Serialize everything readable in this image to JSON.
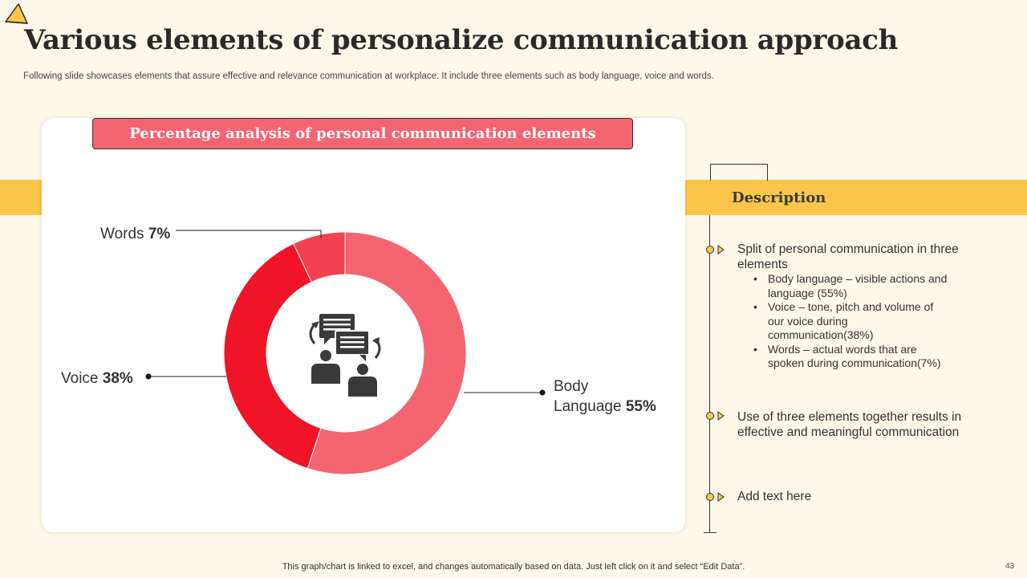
{
  "slide": {
    "title": "Various elements of personalize communication approach",
    "subtitle": "Following slide showcases elements that assure effective and relevance communication at workplace. It include three elements such as body language, voice and words.",
    "footer": "This graph/chart is linked to excel,  and changes automatically based on data. Just left click on it and select “Edit Data”.",
    "page_number": "43"
  },
  "colors": {
    "background": "#fdf8ea",
    "accent_yellow": "#fbc648",
    "title_box": "#f56471",
    "body_language": "#f56471",
    "voice": "#f01427",
    "words": "#f3424f"
  },
  "chart_data": {
    "type": "pie",
    "variant": "donut",
    "title": "Percentage analysis of personal communication elements",
    "center_icon": "people-conversation-icon",
    "categories": [
      "Body Language",
      "Voice",
      "Words"
    ],
    "values": [
      55,
      38,
      7
    ],
    "labels": [
      {
        "name_lines": [
          "Body",
          "Language"
        ],
        "value_text": "55%"
      },
      {
        "name_lines": [
          "Voice"
        ],
        "value_text": "38%"
      },
      {
        "name_lines": [
          "Words"
        ],
        "value_text": "7%"
      }
    ]
  },
  "description": {
    "heading": "Description",
    "points": [
      {
        "text": "Split of personal communication in three elements",
        "bullets": [
          "Body language – visible actions and language (55%)",
          "Voice – tone, pitch and volume of our voice during communication(38%)",
          "Words – actual words that are spoken during communication(7%)"
        ]
      },
      {
        "text": "Use of three elements together results in effective and meaningful communication",
        "bullets": []
      },
      {
        "text": "Add text here",
        "bullets": []
      }
    ]
  }
}
